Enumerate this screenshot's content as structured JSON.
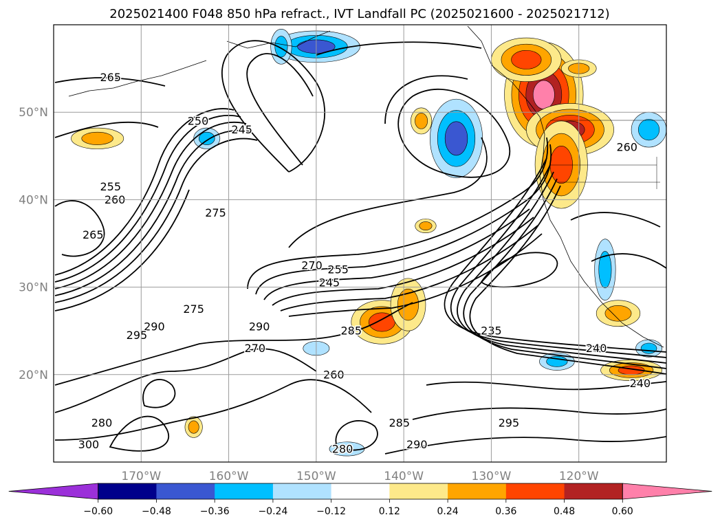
{
  "title": "2025021400 F048 850 hPa refract., IVT Landfall PC (2025021600 - 2025021712)",
  "map": {
    "lon_range": [
      -180,
      -110
    ],
    "lat_range": [
      10,
      60
    ],
    "projection": "equirectangular",
    "gridlines": true,
    "lon_ticks": [
      {
        "lon": -170,
        "label": "170°W"
      },
      {
        "lon": -160,
        "label": "160°W"
      },
      {
        "lon": -150,
        "label": "150°W"
      },
      {
        "lon": -140,
        "label": "140°W"
      },
      {
        "lon": -130,
        "label": "130°W"
      },
      {
        "lon": -120,
        "label": "120°W"
      }
    ],
    "lat_ticks": [
      {
        "lat": 50,
        "label": "50°N"
      },
      {
        "lat": 40,
        "label": "40°N"
      },
      {
        "lat": 30,
        "label": "30°N"
      },
      {
        "lat": 20,
        "label": "20°N"
      }
    ]
  },
  "colorbar": {
    "orientation": "horizontal",
    "extend": "both",
    "boundaries": [
      -0.72,
      -0.6,
      -0.48,
      -0.36,
      -0.24,
      -0.12,
      0.12,
      0.24,
      0.36,
      0.48,
      0.6,
      0.72
    ],
    "colors": [
      "#9b30d9",
      "#00008b",
      "#3a57d1",
      "#00bfff",
      "#b0e2ff",
      "#ffffff",
      "#fde98a",
      "#ffa500",
      "#ff4500",
      "#b22222",
      "#ff80aa"
    ],
    "under_color": "#9b30d9",
    "over_color": "#ff80aa",
    "tick_labels": [
      "−0.60",
      "−0.48",
      "−0.36",
      "−0.24",
      "−0.12",
      "0.12",
      "0.24",
      "0.36",
      "0.48",
      "0.60"
    ]
  },
  "shaded_regions": [
    {
      "lon": -124,
      "lat": 52,
      "rlon": 4.5,
      "rlat": 6,
      "value": 0.65
    },
    {
      "lon": -121,
      "lat": 48,
      "rlon": 5,
      "rlat": 3,
      "value": 0.5
    },
    {
      "lon": -122,
      "lat": 44,
      "rlon": 3,
      "rlat": 5,
      "value": 0.4
    },
    {
      "lon": -126,
      "lat": 56,
      "rlon": 4,
      "rlat": 2.5,
      "value": 0.4
    },
    {
      "lon": -134,
      "lat": 47,
      "rlon": 3,
      "rlat": 4.5,
      "value": -0.45
    },
    {
      "lon": -150,
      "lat": 57.5,
      "rlon": 5,
      "rlat": 1.8,
      "value": -0.4
    },
    {
      "lon": -142.5,
      "lat": 26,
      "rlon": 3.5,
      "rlat": 2.5,
      "value": 0.4
    },
    {
      "lon": -139.5,
      "lat": 28,
      "rlon": 2,
      "rlat": 3,
      "value": 0.3
    },
    {
      "lon": -175,
      "lat": 47,
      "rlon": 3,
      "rlat": 1.2,
      "value": 0.35
    },
    {
      "lon": -114,
      "lat": 20.5,
      "rlon": 3.5,
      "rlat": 1.2,
      "value": 0.4
    },
    {
      "lon": -115.5,
      "lat": 27,
      "rlon": 2.5,
      "rlat": 1.5,
      "value": 0.3
    },
    {
      "lon": -164,
      "lat": 14,
      "rlon": 1,
      "rlat": 1.2,
      "value": 0.3
    },
    {
      "lon": -117,
      "lat": 32,
      "rlon": 1.2,
      "rlat": 3.5,
      "value": -0.3
    },
    {
      "lon": -112,
      "lat": 48,
      "rlon": 2,
      "rlat": 2,
      "value": -0.3
    },
    {
      "lon": -162.5,
      "lat": 47,
      "rlon": 1.5,
      "rlat": 1.2,
      "value": -0.3
    },
    {
      "lon": -154,
      "lat": 57.5,
      "rlon": 1.2,
      "rlat": 2,
      "value": -0.25
    },
    {
      "lon": -138,
      "lat": 49,
      "rlon": 1.2,
      "rlat": 1.5,
      "value": 0.25
    },
    {
      "lon": -137.5,
      "lat": 37,
      "rlon": 1.2,
      "rlat": 0.8,
      "value": 0.25
    },
    {
      "lon": -112,
      "lat": 23,
      "rlon": 1.5,
      "rlat": 1,
      "value": -0.25
    },
    {
      "lon": -122.5,
      "lat": 21.5,
      "rlon": 2,
      "rlat": 1,
      "value": -0.25
    },
    {
      "lon": -150,
      "lat": 23,
      "rlon": 1.5,
      "rlat": 0.8,
      "value": -0.2
    },
    {
      "lon": -146.5,
      "lat": 11.5,
      "rlon": 2,
      "rlat": 0.8,
      "value": -0.2
    },
    {
      "lon": -120,
      "lat": 55,
      "rlon": 2,
      "rlat": 1,
      "value": 0.25
    }
  ],
  "contours": [
    {
      "value": 260,
      "label_at": [
        {
          "lon": -173,
          "lat": 40
        },
        {
          "lon": -114.5,
          "lat": 46
        },
        {
          "lon": -148,
          "lat": 20
        }
      ]
    },
    {
      "value": 265,
      "label_at": [
        {
          "lon": -173.5,
          "lat": 54
        },
        {
          "lon": -175.5,
          "lat": 36
        }
      ]
    },
    {
      "value": 255,
      "label_at": [
        {
          "lon": -173.5,
          "lat": 41.5
        },
        {
          "lon": -147.5,
          "lat": 32
        }
      ]
    },
    {
      "value": 250,
      "label_at": [
        {
          "lon": -163.5,
          "lat": 49
        }
      ]
    },
    {
      "value": 245,
      "label_at": [
        {
          "lon": -158.5,
          "lat": 48
        },
        {
          "lon": -148.5,
          "lat": 30.5
        }
      ]
    },
    {
      "value": 275,
      "label_at": [
        {
          "lon": -161.5,
          "lat": 38.5
        },
        {
          "lon": -164,
          "lat": 27.5
        }
      ]
    },
    {
      "value": 270,
      "label_at": [
        {
          "lon": -150.5,
          "lat": 32.5
        },
        {
          "lon": -157,
          "lat": 23
        }
      ]
    },
    {
      "value": 285,
      "label_at": [
        {
          "lon": -146,
          "lat": 25
        },
        {
          "lon": -140.5,
          "lat": 14.5
        }
      ]
    },
    {
      "value": 290,
      "label_at": [
        {
          "lon": -168.5,
          "lat": 25.5
        },
        {
          "lon": -156.5,
          "lat": 25.5
        },
        {
          "lon": -138.5,
          "lat": 12
        }
      ]
    },
    {
      "value": 295,
      "label_at": [
        {
          "lon": -170.5,
          "lat": 24.5
        },
        {
          "lon": -128,
          "lat": 14.5
        }
      ]
    },
    {
      "value": 280,
      "label_at": [
        {
          "lon": -174.5,
          "lat": 14.5
        },
        {
          "lon": -147,
          "lat": 11.5
        }
      ]
    },
    {
      "value": 300,
      "label_at": [
        {
          "lon": -176,
          "lat": 12
        }
      ]
    },
    {
      "value": 240,
      "label_at": [
        {
          "lon": -118,
          "lat": 23
        },
        {
          "lon": -113,
          "lat": 19
        }
      ]
    },
    {
      "value": 235,
      "label_at": [
        {
          "lon": -130,
          "lat": 25
        }
      ]
    }
  ]
}
